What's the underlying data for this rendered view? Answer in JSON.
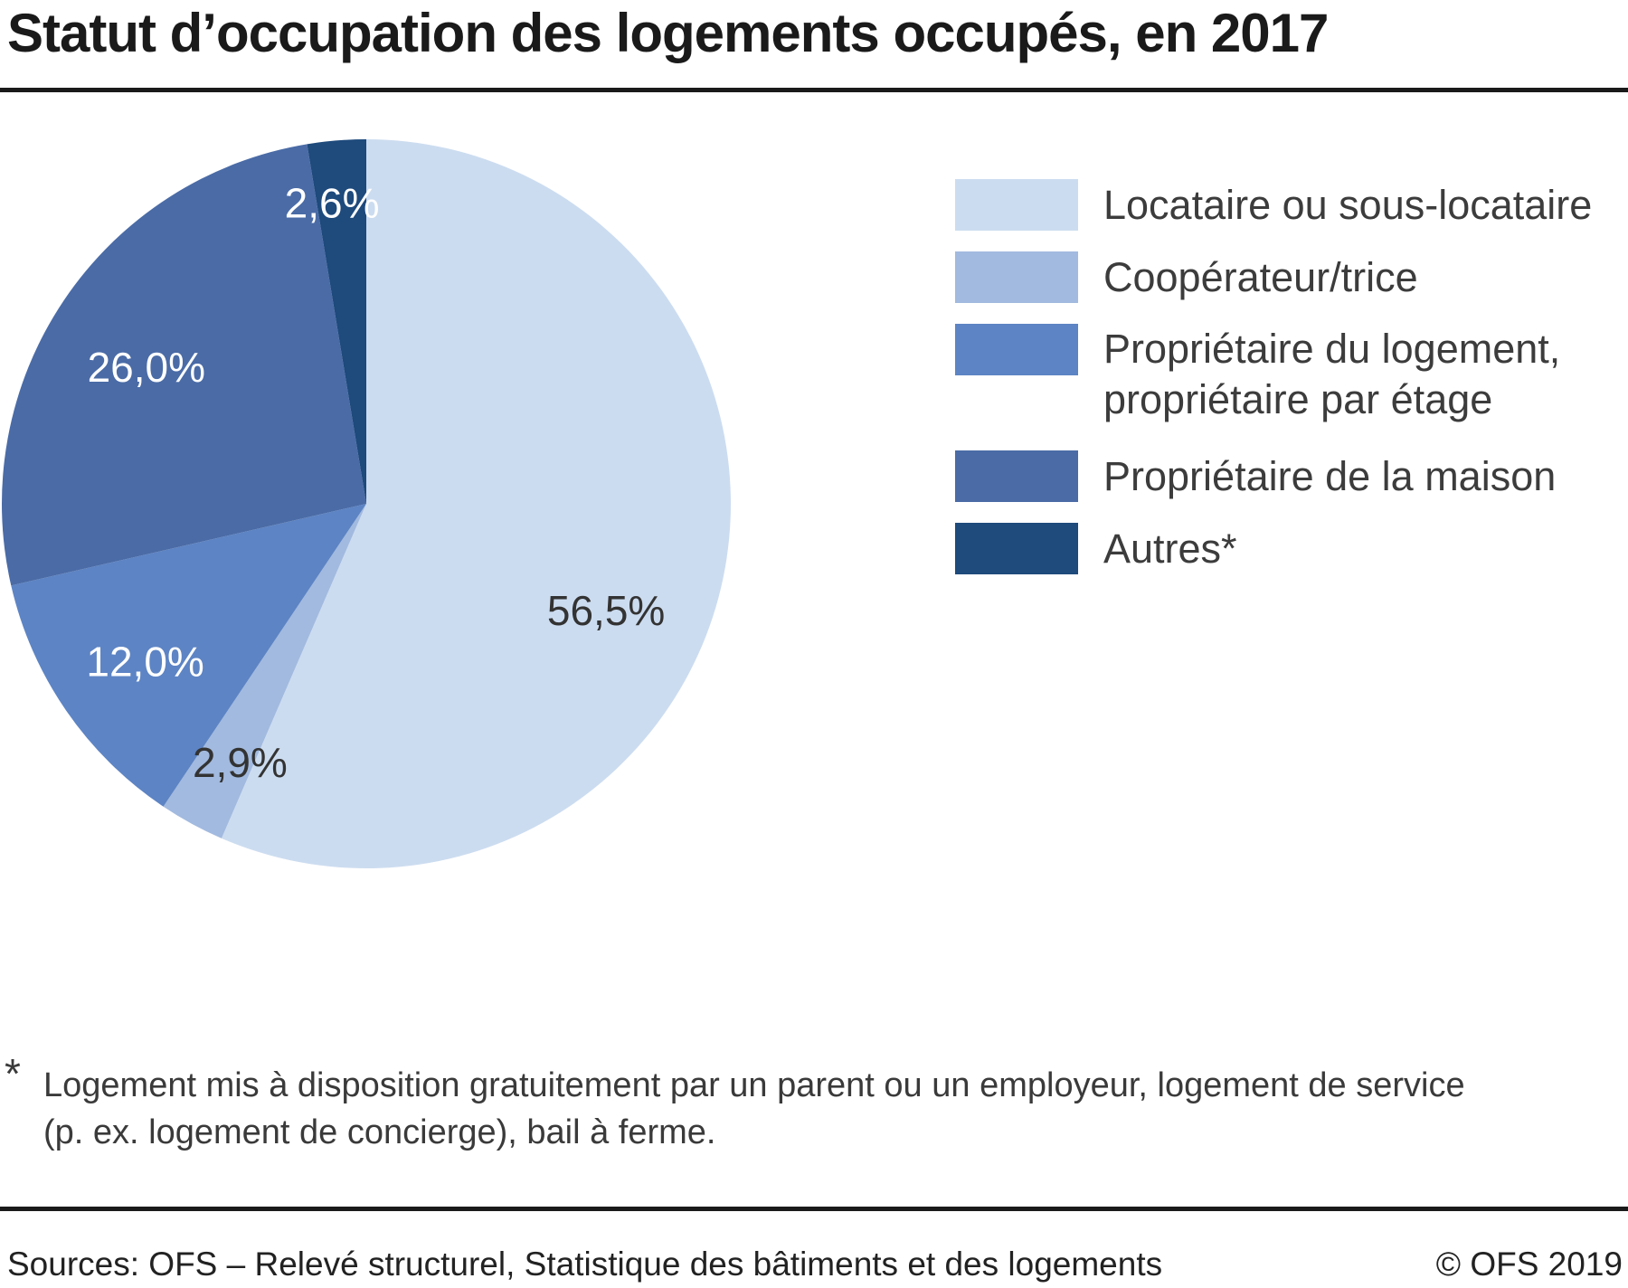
{
  "title": "Statut d’occupation des logements occupés, en 2017",
  "chart_data": {
    "type": "pie",
    "title": "Statut d’occupation des logements occupés, en 2017",
    "unit": "%",
    "start_angle_deg": 0,
    "direction": "clockwise",
    "legend_position": "right",
    "slices": [
      {
        "id": "locataire",
        "label": "Locataire ou sous-locataire",
        "legend_lines": [
          "Locataire ou sous-locataire"
        ],
        "value": 56.5,
        "display": "56,5%",
        "color": "#ccdcf0",
        "label_color": "#333333"
      },
      {
        "id": "cooperateur",
        "label": "Coopérateur/trice",
        "legend_lines": [
          "Coopérateur/trice"
        ],
        "value": 2.9,
        "display": "2,9%",
        "color": "#a2badf",
        "label_color": "#333333"
      },
      {
        "id": "proprietaire-logement",
        "label": "Propriétaire du logement, propriétaire par étage",
        "legend_lines": [
          "Propriétaire du logement,",
          "propriétaire par étage"
        ],
        "value": 12.0,
        "display": "12,0%",
        "color": "#5d84c4",
        "label_color": "#ffffff"
      },
      {
        "id": "proprietaire-maison",
        "label": "Propriétaire de la maison",
        "legend_lines": [
          "Propriétaire de la maison"
        ],
        "value": 26.0,
        "display": "26,0%",
        "color": "#4a6ba6",
        "label_color": "#ffffff"
      },
      {
        "id": "autres",
        "label": "Autres*",
        "legend_lines": [
          "Autres*"
        ],
        "value": 2.6,
        "display": "2,6%",
        "color": "#1e4a7c",
        "label_color": "#ffffff"
      }
    ]
  },
  "footnote": {
    "marker": "*",
    "lines": [
      "Logement mis à disposition gratuitement par un parent ou un employeur, logement de service",
      "(p. ex. logement de concierge), bail à ferme."
    ]
  },
  "footer": {
    "sources": "Sources: OFS – Relevé structurel, Statistique des bâtiments et des logements",
    "copyright": "© OFS 2019"
  }
}
